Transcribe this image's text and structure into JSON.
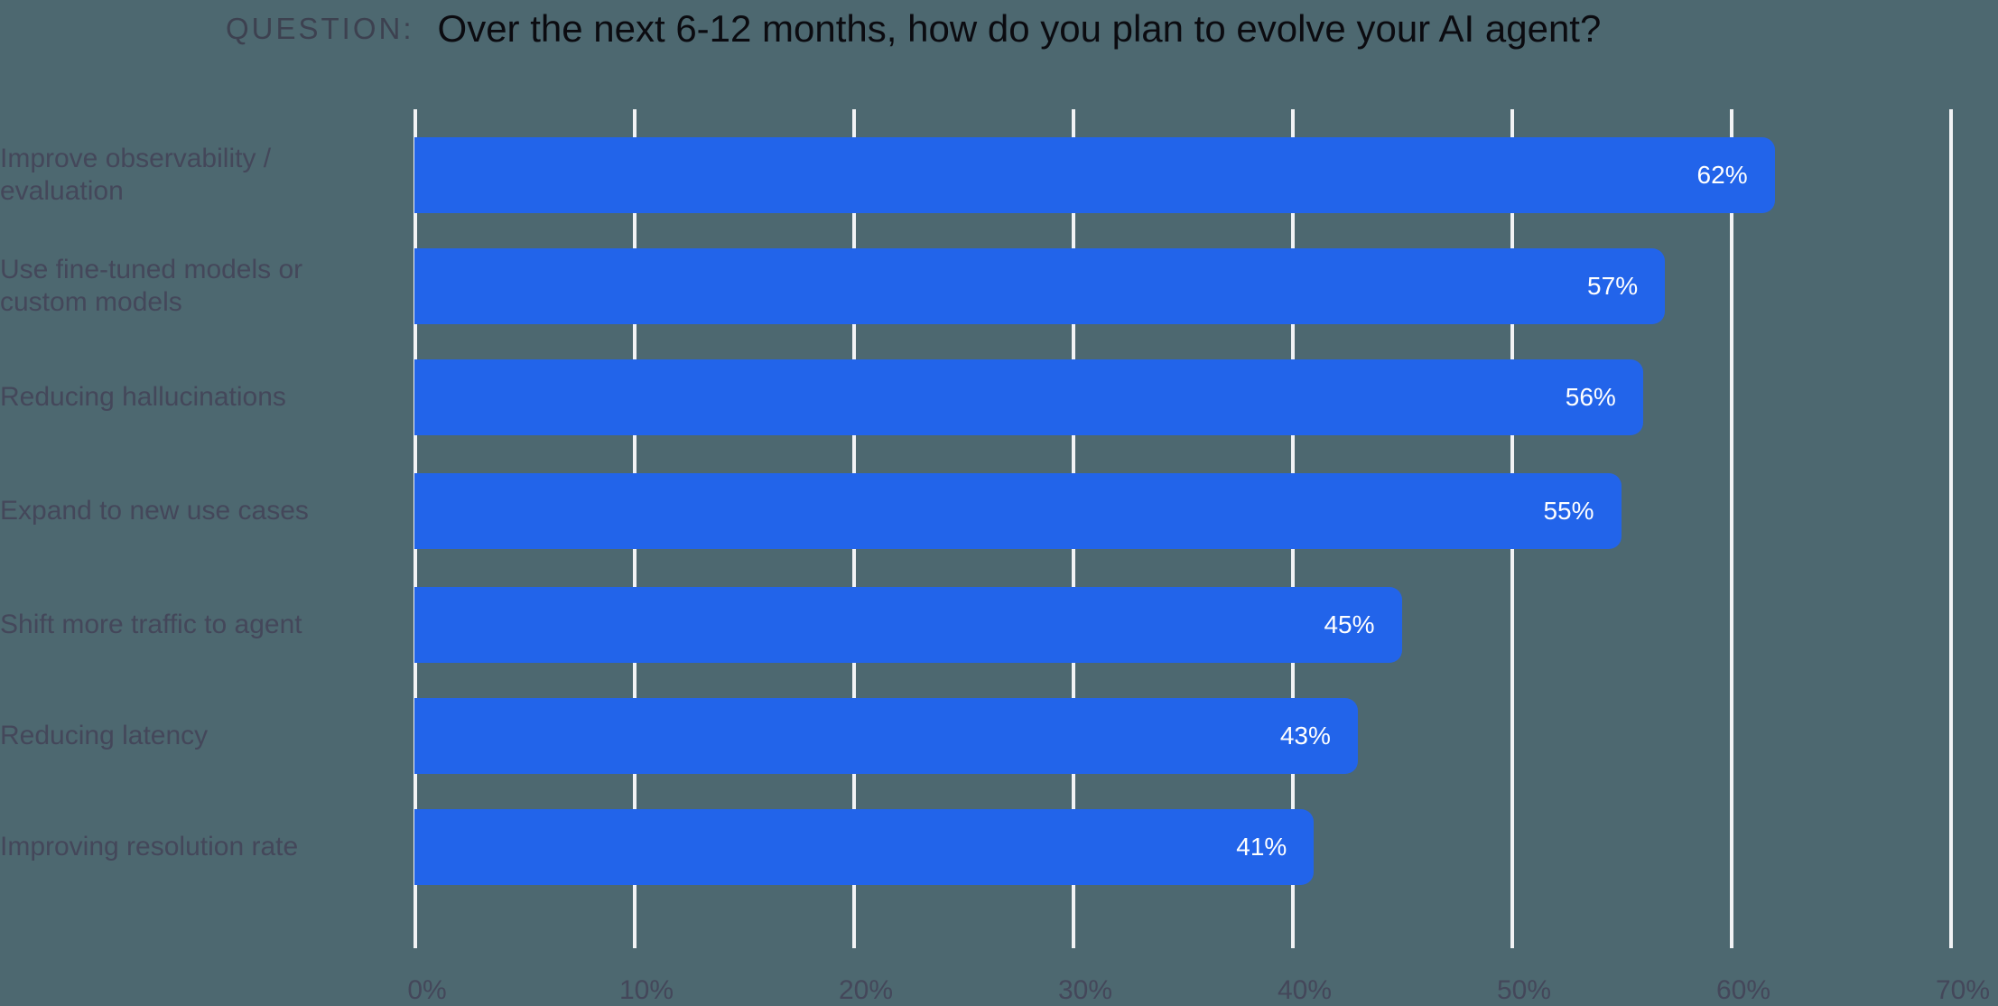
{
  "header": {
    "prefix": "QUESTION:",
    "question": "Over the next 6-12 months, how do you plan to evolve your AI agent?"
  },
  "colors": {
    "background": "#4d6870",
    "bar": "#2264ea",
    "gridline": "#f2f3f5",
    "label_text": "#44475a",
    "title_text": "#0b0b10"
  },
  "chart_data": {
    "type": "bar",
    "orientation": "horizontal",
    "title": "Over the next 6-12 months, how do you plan to evolve your AI agent?",
    "title_prefix": "QUESTION:",
    "categories": [
      "Improve observability / evaluation",
      "Use fine-tuned models or custom models",
      "Reducing hallucinations",
      "Expand to new use cases",
      "Shift more traffic to agent",
      "Reducing latency",
      "Improving resolution rate"
    ],
    "values": [
      62,
      57,
      56,
      55,
      45,
      43,
      41
    ],
    "value_labels": [
      "62%",
      "57%",
      "56%",
      "55%",
      "45%",
      "43%",
      "41%"
    ],
    "xlabel": "",
    "ylabel": "",
    "xlim": [
      0,
      70
    ],
    "x_ticks": [
      0,
      10,
      20,
      30,
      40,
      50,
      60,
      70
    ],
    "x_tick_labels": [
      "0%",
      "10%",
      "20%",
      "30%",
      "40%",
      "50%",
      "60%",
      "70%"
    ],
    "grid": true,
    "grid_axis": "x",
    "legend": "none",
    "unit": "%"
  }
}
